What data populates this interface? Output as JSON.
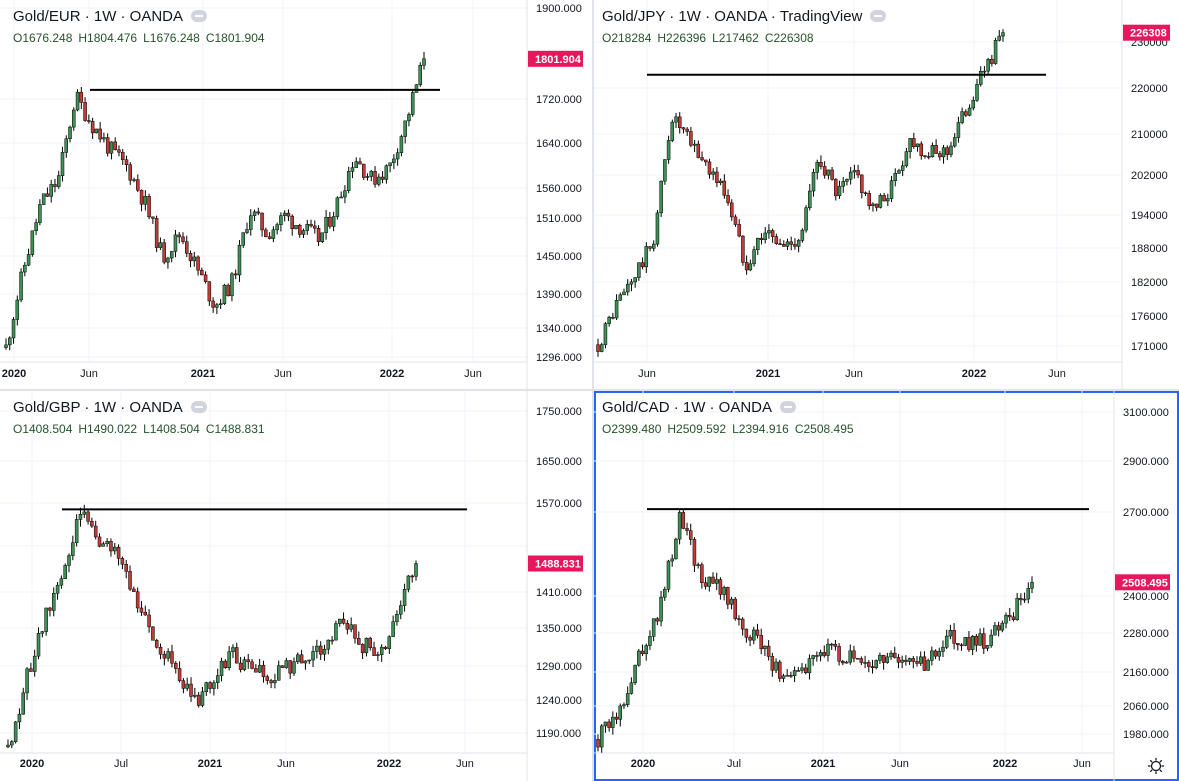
{
  "colors": {
    "up": "#3d8f54",
    "down": "#c23a35",
    "grid": "#f0f3fa",
    "badge": "#e8175d",
    "axis": "#131722",
    "active": "#2962ff",
    "line": "#000000"
  },
  "icons": {
    "settings": "gear-icon",
    "visibility": "eye-icon"
  },
  "panels": [
    {
      "id": "eur",
      "title": "Gold/EUR · 1W · OANDA",
      "ohlc": {
        "o": "O1676.248",
        "h": "H1804.476",
        "l": "L1676.248",
        "c": "C1801.904"
      },
      "price_ticks": [
        "1900.000",
        "1720.000",
        "1640.000",
        "1560.000",
        "1510.000",
        "1450.000",
        "1390.000",
        "1340.000",
        "1296.000"
      ],
      "time_ticks": [
        "2020",
        "Jun",
        "2021",
        "Jun",
        "2022",
        "Jun"
      ],
      "badge": "1801.904",
      "chart_data": {
        "type": "candlestick",
        "series": "Gold/EUR weekly",
        "ylim": [
          1296,
          1900
        ],
        "resistance": 1750,
        "close_path": [
          1320,
          1450,
          1560,
          1600,
          1740,
          1690,
          1650,
          1620,
          1560,
          1470,
          1510,
          1450,
          1390,
          1430,
          1550,
          1510,
          1540,
          1520,
          1500,
          1560,
          1640,
          1600,
          1620,
          1700,
          1801.904
        ]
      }
    },
    {
      "id": "jpy",
      "title": "Gold/JPY · 1W · OANDA · TradingView",
      "ohlc": {
        "o": "O218284",
        "h": "H226396",
        "l": "L217462",
        "c": "C226308"
      },
      "price_ticks": [
        "230000",
        "220000",
        "210000",
        "202000",
        "194000",
        "188000",
        "182000",
        "176000",
        "171000"
      ],
      "time_ticks": [
        "Jun",
        "2021",
        "Jun",
        "2022",
        "Jun"
      ],
      "badge": "226308",
      "chart_data": {
        "type": "candlestick",
        "series": "Gold/JPY weekly",
        "ylim": [
          169000,
          232000
        ],
        "resistance": 219000,
        "close_path": [
          172000,
          179000,
          184000,
          190000,
          212000,
          207000,
          203000,
          198000,
          186000,
          192000,
          189000,
          191000,
          205000,
          198000,
          202000,
          195000,
          200000,
          208000,
          205000,
          206000,
          213000,
          220000,
          226308
        ]
      }
    },
    {
      "id": "gbp",
      "title": "Gold/GBP · 1W · OANDA",
      "ohlc": {
        "o": "O1408.504",
        "h": "H1490.022",
        "l": "L1408.504",
        "c": "C1488.831"
      },
      "price_ticks": [
        "1750.000",
        "1650.000",
        "1570.000",
        "1488.831",
        "1410.000",
        "1350.000",
        "1290.000",
        "1240.000",
        "1190.000"
      ],
      "time_ticks": [
        "2020",
        "Jul",
        "2021",
        "Jun",
        "2022",
        "Jun"
      ],
      "badge": "1488.831",
      "chart_data": {
        "type": "candlestick",
        "series": "Gold/GBP weekly",
        "ylim": [
          1180,
          1770
        ],
        "resistance": 1577,
        "close_path": [
          1190,
          1300,
          1400,
          1480,
          1575,
          1520,
          1500,
          1430,
          1360,
          1330,
          1260,
          1290,
          1340,
          1320,
          1300,
          1320,
          1340,
          1350,
          1390,
          1360,
          1340,
          1408.504,
          1488.831
        ]
      }
    },
    {
      "id": "cad",
      "title": "Gold/CAD · 1W · OANDA",
      "ohlc": {
        "o": "O2399.480",
        "h": "H2509.592",
        "l": "L2394.916",
        "c": "C2508.495"
      },
      "price_ticks": [
        "3100.000",
        "2900.000",
        "2700.000",
        "2400.000",
        "2280.000",
        "2160.000",
        "2060.000",
        "1980.000"
      ],
      "time_ticks": [
        "2020",
        "Jul",
        "2021",
        "Jun",
        "2022",
        "Jun"
      ],
      "badge": "2508.495",
      "chart_data": {
        "type": "candlestick",
        "series": "Gold/CAD weekly",
        "ylim": [
          1945,
          3140
        ],
        "resistance": 2750,
        "close_path": [
          1990,
          2080,
          2280,
          2420,
          2740,
          2520,
          2490,
          2360,
          2300,
          2180,
          2220,
          2300,
          2260,
          2230,
          2280,
          2250,
          2240,
          2330,
          2300,
          2320,
          2399.48,
          2508.495
        ]
      }
    }
  ]
}
